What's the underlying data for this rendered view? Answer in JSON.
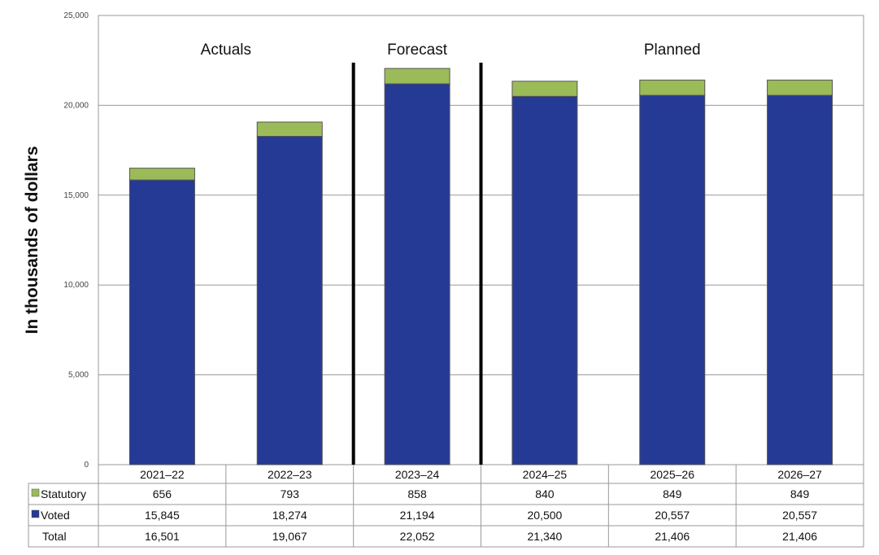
{
  "chart_data": {
    "type": "bar",
    "stacked": true,
    "ylabel": "In thousands of dollars",
    "ylim": [
      0,
      25000
    ],
    "yticks": [
      0,
      5000,
      10000,
      15000,
      20000,
      25000
    ],
    "ytick_labels": [
      "0",
      "5,000",
      "10,000",
      "15,000",
      "20,000",
      "25,000"
    ],
    "grid": true,
    "categories": [
      "2021–22",
      "2022–23",
      "2023–24",
      "2024–25",
      "2025–26",
      "2026–27"
    ],
    "series": [
      {
        "name": "Voted",
        "color": "#253A95",
        "values": [
          15845,
          18274,
          21194,
          20500,
          20557,
          20557
        ],
        "labels": [
          "15,845",
          "18,274",
          "21,194",
          "20,500",
          "20,557",
          "20,557"
        ]
      },
      {
        "name": "Statutory",
        "color": "#9BBB59",
        "values": [
          656,
          793,
          858,
          840,
          849,
          849
        ],
        "labels": [
          "656",
          "793",
          "858",
          "840",
          "849",
          "849"
        ]
      }
    ],
    "totals": {
      "name": "Total",
      "values": [
        16501,
        19067,
        22052,
        21340,
        21406,
        21406
      ],
      "labels": [
        "16,501",
        "19,067",
        "22,052",
        "21,340",
        "21,406",
        "21,406"
      ]
    },
    "period_labels": [
      {
        "text": "Actuals",
        "from": 0,
        "to": 1
      },
      {
        "text": "Forecast",
        "from": 2,
        "to": 2
      },
      {
        "text": "Planned",
        "from": 3,
        "to": 5
      }
    ],
    "dividers_after": [
      1,
      2
    ],
    "legend": "data-table"
  }
}
